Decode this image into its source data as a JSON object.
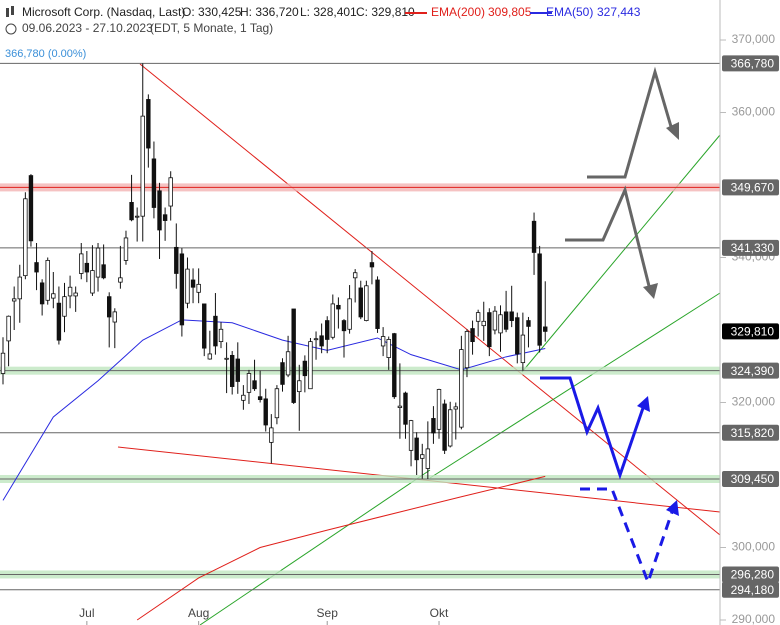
{
  "chart_data": {
    "type": "candlestick",
    "title": "Microsoft Corp. (Nasdaq, Last)",
    "ohlc_labels": [
      "O: 330,425",
      "H: 336,720",
      "L: 328,401",
      "C: 329,810"
    ],
    "period": "09.06.2023 - 27.10.2023",
    "period_note": "(EDT, 5 Monate, 1 Tag)",
    "high_note": "366,780 (0.00%)",
    "ylim": [
      289310,
      375520
    ],
    "yticks": [
      {
        "value": 370000,
        "label": "370,000"
      },
      {
        "value": 360000,
        "label": "360,000"
      },
      {
        "value": 340000,
        "label": "340,000"
      },
      {
        "value": 320000,
        "label": "320,000"
      },
      {
        "value": 300000,
        "label": "300,000"
      },
      {
        "value": 290000,
        "label": "290,000"
      }
    ],
    "categories": [
      null,
      null,
      null,
      null,
      null,
      null,
      null,
      null,
      null,
      null,
      null,
      null,
      null,
      null,
      null,
      "Jul",
      null,
      null,
      null,
      null,
      null,
      null,
      null,
      null,
      null,
      null,
      null,
      null,
      null,
      null,
      null,
      null,
      null,
      null,
      null,
      "Aug",
      null,
      null,
      null,
      null,
      null,
      null,
      null,
      null,
      null,
      null,
      null,
      null,
      null,
      null,
      null,
      null,
      null,
      null,
      null,
      null,
      null,
      null,
      "Sep",
      null,
      null,
      null,
      null,
      null,
      null,
      null,
      null,
      null,
      null,
      null,
      null,
      null,
      null,
      null,
      null,
      null,
      null,
      null,
      "Okt",
      null,
      null,
      null,
      null,
      null,
      null,
      null,
      null,
      null,
      null,
      null,
      null,
      null,
      null,
      null,
      null,
      null,
      null,
      null
    ],
    "candles": [
      [
        324000,
        329000,
        322500,
        326800
      ],
      [
        328500,
        332000,
        325000,
        331900
      ],
      [
        334000,
        336000,
        330000,
        334300
      ],
      [
        334300,
        339000,
        331000,
        337300
      ],
      [
        337500,
        349000,
        337000,
        348100
      ],
      [
        351300,
        351500,
        341500,
        342300
      ],
      [
        339300,
        342000,
        335500,
        338000
      ],
      [
        336500,
        337000,
        332000,
        333600
      ],
      [
        334100,
        340000,
        333500,
        339600
      ],
      [
        334400,
        338000,
        333000,
        335000
      ],
      [
        333700,
        336000,
        328000,
        328600
      ],
      [
        331900,
        336500,
        329700,
        334600
      ],
      [
        334700,
        337500,
        333000,
        335900
      ],
      [
        334700,
        336000,
        332500,
        335100
      ],
      [
        337800,
        342000,
        337000,
        340500
      ],
      [
        339200,
        340900,
        336600,
        338000
      ],
      [
        335100,
        341700,
        334700,
        338200
      ],
      [
        337300,
        342000,
        335300,
        341300
      ],
      [
        339000,
        341800,
        337000,
        337200
      ],
      [
        334600,
        335200,
        327600,
        331800
      ],
      [
        331100,
        333000,
        327500,
        332500
      ],
      [
        336600,
        341600,
        335700,
        337200
      ],
      [
        339600,
        343700,
        339000,
        342700
      ],
      [
        347600,
        351400,
        345000,
        345200
      ],
      [
        345700,
        346900,
        342200,
        345700
      ],
      [
        345700,
        366780,
        342200,
        359500
      ],
      [
        361800,
        362500,
        352400,
        355100
      ],
      [
        353600,
        356000,
        345400,
        346900
      ],
      [
        349200,
        350300,
        339800,
        343800
      ],
      [
        345900,
        346900,
        342300,
        345100
      ],
      [
        347100,
        351900,
        345100,
        351000
      ],
      [
        341400,
        344700,
        335700,
        337800
      ],
      [
        340500,
        341300,
        329100,
        330700
      ],
      [
        333700,
        340000,
        333000,
        338400
      ],
      [
        336900,
        338500,
        333700,
        335900
      ],
      [
        335200,
        338500,
        333700,
        336300
      ],
      [
        333600,
        333600,
        326400,
        327500
      ],
      [
        326000,
        329900,
        325900,
        326700
      ],
      [
        331900,
        335100,
        326600,
        327800
      ],
      [
        328400,
        331100,
        327500,
        330100
      ],
      [
        326000,
        328300,
        321300,
        326100
      ],
      [
        326500,
        327100,
        321100,
        322200
      ],
      [
        326000,
        328300,
        321200,
        322900
      ],
      [
        320300,
        322400,
        319000,
        321000
      ],
      [
        321400,
        324500,
        319800,
        324000
      ],
      [
        323000,
        325900,
        321600,
        321900
      ],
      [
        320800,
        324400,
        320000,
        320400
      ],
      [
        320500,
        321900,
        316000,
        316900
      ],
      [
        314500,
        318400,
        311600,
        316500
      ],
      [
        317900,
        322400,
        317000,
        321900
      ],
      [
        325500,
        326100,
        321500,
        322500
      ],
      [
        323800,
        329200,
        323500,
        327000
      ],
      [
        332900,
        332900,
        319800,
        320000
      ],
      [
        321500,
        325200,
        316100,
        323000
      ],
      [
        325700,
        326500,
        321400,
        323700
      ],
      [
        321900,
        328900,
        321900,
        328400
      ],
      [
        328700,
        329800,
        325900,
        328800
      ],
      [
        329200,
        330900,
        326800,
        327800
      ],
      [
        331300,
        331900,
        326800,
        328700
      ],
      [
        329000,
        334900,
        328700,
        333600
      ],
      [
        333400,
        334500,
        330200,
        332900
      ],
      [
        331300,
        331500,
        326200,
        329900
      ],
      [
        330100,
        336200,
        329500,
        334300
      ],
      [
        337200,
        338400,
        333800,
        337900
      ],
      [
        335800,
        336800,
        331500,
        331800
      ],
      [
        331300,
        336800,
        331200,
        336100
      ],
      [
        339300,
        340900,
        336300,
        338700
      ],
      [
        336900,
        337400,
        329600,
        330200
      ],
      [
        327800,
        330400,
        326400,
        329100
      ],
      [
        326200,
        329100,
        324500,
        328700
      ],
      [
        329500,
        329600,
        320500,
        320800
      ],
      [
        319300,
        325400,
        315000,
        319500
      ],
      [
        321300,
        321500,
        315000,
        317000
      ],
      [
        313400,
        317600,
        311200,
        317500
      ],
      [
        315100,
        315900,
        310000,
        312100
      ],
      [
        312300,
        314300,
        309500,
        312800
      ],
      [
        310900,
        317400,
        309450,
        313600
      ],
      [
        317800,
        319500,
        314300,
        315800
      ],
      [
        316300,
        321900,
        315000,
        321800
      ],
      [
        319800,
        320400,
        312900,
        313400
      ],
      [
        314000,
        320100,
        313800,
        319000
      ],
      [
        319100,
        320000,
        314900,
        319400
      ],
      [
        316600,
        329200,
        316300,
        327300
      ],
      [
        324800,
        330100,
        323500,
        329800
      ],
      [
        330200,
        331300,
        326600,
        328400
      ],
      [
        331200,
        332800,
        329100,
        332400
      ],
      [
        330600,
        333900,
        328500,
        331200
      ],
      [
        332400,
        333000,
        326400,
        327700
      ],
      [
        330000,
        333300,
        329400,
        332600
      ],
      [
        329600,
        333400,
        327000,
        332100
      ],
      [
        332500,
        335400,
        329700,
        330100
      ],
      [
        332500,
        336100,
        330400,
        331300
      ],
      [
        331700,
        332400,
        325400,
        326700
      ],
      [
        325500,
        332400,
        324400,
        329300
      ],
      [
        331300,
        331800,
        327600,
        330500
      ],
      [
        345000,
        346200,
        337600,
        340700
      ],
      [
        340500,
        341600,
        326900,
        327900
      ],
      [
        330425,
        336720,
        328401,
        329810
      ]
    ],
    "ema": [
      {
        "name": "EMA(200)",
        "color": "#e0201b",
        "value_label": "309,805",
        "x": [
          24,
          35,
          46,
          58,
          71,
          82,
          97
        ],
        "values": [
          290000,
          295800,
          300000,
          302400,
          304900,
          307000,
          309805
        ]
      },
      {
        "name": "EMA(50)",
        "color": "#2a2ae0",
        "value_label": "327,443",
        "x": [
          0,
          9,
          17,
          25,
          32,
          41,
          50,
          58,
          67,
          73,
          82,
          90,
          97
        ],
        "values": [
          306500,
          318000,
          323000,
          328600,
          331400,
          331000,
          328600,
          327200,
          328900,
          326600,
          324500,
          326300,
          327443
        ]
      }
    ],
    "levels": {
      "values": [
        366780,
        349670,
        341330,
        329810,
        324390,
        315820,
        309450,
        296280,
        294180
      ],
      "value_labels": [
        "366,780",
        "349,670",
        "341,330",
        "329,810",
        "324,390",
        "315,820",
        "309,450",
        "296,280",
        "294,180"
      ],
      "box_colors": [
        "#666666",
        "#666666",
        "#666666",
        "#000000",
        "#666666",
        "#666666",
        "#666666",
        "#666666",
        "#666666"
      ],
      "band_colors": [
        null,
        "#f2b3b3",
        null,
        null,
        "#bfe6bf",
        null,
        "#bfe6bf",
        "#bfe6bf",
        null
      ]
    }
  }
}
